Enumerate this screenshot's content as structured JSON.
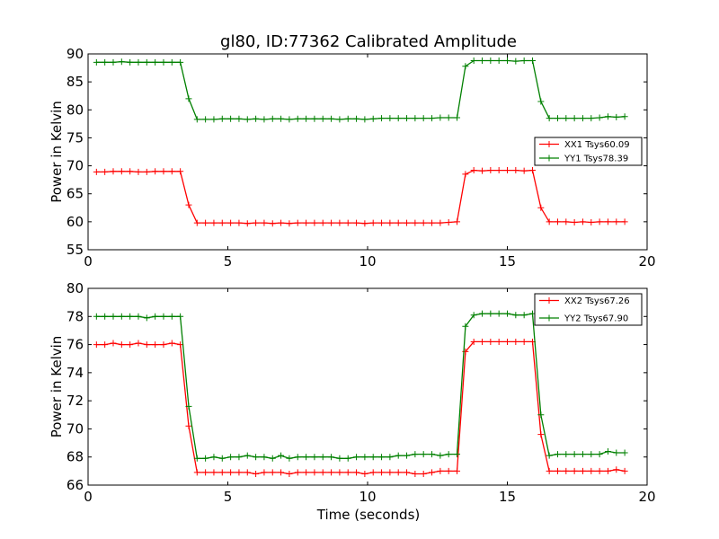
{
  "title": "gl80, ID:77362 Calibrated Amplitude",
  "xlabel": "Time (seconds)",
  "colors": {
    "red": "#ff0000",
    "green": "#008000"
  },
  "chart_data": [
    {
      "type": "line",
      "ylabel": "Power in Kelvin",
      "xlim": [
        0,
        20
      ],
      "ylim": [
        55,
        90
      ],
      "xticks": [
        "0",
        "5",
        "10",
        "15",
        "20"
      ],
      "yticks": [
        "55",
        "60",
        "65",
        "70",
        "75",
        "80",
        "85",
        "90"
      ],
      "grid": false,
      "legend": "right",
      "x": [
        0.3,
        0.6,
        0.9,
        1.2,
        1.5,
        1.8,
        2.1,
        2.4,
        2.7,
        3.0,
        3.3,
        3.6,
        3.9,
        4.2,
        4.5,
        4.8,
        5.1,
        5.4,
        5.7,
        6.0,
        6.3,
        6.6,
        6.9,
        7.2,
        7.5,
        7.8,
        8.1,
        8.4,
        8.7,
        9.0,
        9.3,
        9.6,
        9.9,
        10.2,
        10.5,
        10.8,
        11.1,
        11.4,
        11.7,
        12.0,
        12.3,
        12.6,
        12.9,
        13.2,
        13.5,
        13.8,
        14.1,
        14.4,
        14.7,
        15.0,
        15.3,
        15.6,
        15.9,
        16.2,
        16.5,
        16.8,
        17.1,
        17.4,
        17.7,
        18.0,
        18.3,
        18.6,
        18.9,
        19.2
      ],
      "series": [
        {
          "name": "XX1 Tsys60.09",
          "color": "#ff0000",
          "values": [
            68.9,
            68.9,
            69.0,
            69.0,
            69.0,
            68.9,
            68.9,
            69.0,
            69.0,
            69.0,
            69.0,
            63.0,
            59.8,
            59.8,
            59.8,
            59.8,
            59.8,
            59.8,
            59.7,
            59.8,
            59.8,
            59.7,
            59.8,
            59.7,
            59.8,
            59.8,
            59.8,
            59.8,
            59.8,
            59.8,
            59.8,
            59.8,
            59.7,
            59.8,
            59.8,
            59.8,
            59.8,
            59.8,
            59.8,
            59.8,
            59.8,
            59.8,
            59.9,
            60.0,
            68.5,
            69.2,
            69.1,
            69.2,
            69.2,
            69.2,
            69.2,
            69.1,
            69.2,
            62.5,
            60.0,
            60.0,
            60.0,
            59.9,
            60.0,
            59.9,
            60.0,
            60.0,
            60.0,
            60.0
          ]
        },
        {
          "name": "YY1 Tsys78.39",
          "color": "#008000",
          "values": [
            88.5,
            88.5,
            88.5,
            88.6,
            88.5,
            88.5,
            88.5,
            88.5,
            88.5,
            88.5,
            88.5,
            82.0,
            78.3,
            78.3,
            78.3,
            78.4,
            78.4,
            78.4,
            78.3,
            78.4,
            78.3,
            78.4,
            78.4,
            78.3,
            78.4,
            78.4,
            78.4,
            78.4,
            78.4,
            78.3,
            78.4,
            78.4,
            78.3,
            78.4,
            78.5,
            78.5,
            78.5,
            78.5,
            78.5,
            78.5,
            78.5,
            78.6,
            78.6,
            78.6,
            87.8,
            88.8,
            88.8,
            88.8,
            88.8,
            88.8,
            88.7,
            88.8,
            88.8,
            81.5,
            78.5,
            78.5,
            78.5,
            78.5,
            78.5,
            78.5,
            78.6,
            78.8,
            78.7,
            78.8
          ]
        }
      ]
    },
    {
      "type": "line",
      "ylabel": "Power in Kelvin",
      "xlabel": "Time (seconds)",
      "xlim": [
        0,
        20
      ],
      "ylim": [
        66,
        80
      ],
      "xticks": [
        "0",
        "5",
        "10",
        "15",
        "20"
      ],
      "yticks": [
        "66",
        "68",
        "70",
        "72",
        "74",
        "76",
        "78",
        "80"
      ],
      "grid": false,
      "legend": "top-right",
      "x": [
        0.3,
        0.6,
        0.9,
        1.2,
        1.5,
        1.8,
        2.1,
        2.4,
        2.7,
        3.0,
        3.3,
        3.6,
        3.9,
        4.2,
        4.5,
        4.8,
        5.1,
        5.4,
        5.7,
        6.0,
        6.3,
        6.6,
        6.9,
        7.2,
        7.5,
        7.8,
        8.1,
        8.4,
        8.7,
        9.0,
        9.3,
        9.6,
        9.9,
        10.2,
        10.5,
        10.8,
        11.1,
        11.4,
        11.7,
        12.0,
        12.3,
        12.6,
        12.9,
        13.2,
        13.5,
        13.8,
        14.1,
        14.4,
        14.7,
        15.0,
        15.3,
        15.6,
        15.9,
        16.2,
        16.5,
        16.8,
        17.1,
        17.4,
        17.7,
        18.0,
        18.3,
        18.6,
        18.9,
        19.2
      ],
      "series": [
        {
          "name": "XX2 Tsys67.26",
          "color": "#ff0000",
          "values": [
            76.0,
            76.0,
            76.1,
            76.0,
            76.0,
            76.1,
            76.0,
            76.0,
            76.0,
            76.1,
            76.0,
            70.2,
            66.9,
            66.9,
            66.9,
            66.9,
            66.9,
            66.9,
            66.9,
            66.8,
            66.9,
            66.9,
            66.9,
            66.8,
            66.9,
            66.9,
            66.9,
            66.9,
            66.9,
            66.9,
            66.9,
            66.9,
            66.8,
            66.9,
            66.9,
            66.9,
            66.9,
            66.9,
            66.8,
            66.8,
            66.9,
            67.0,
            67.0,
            67.0,
            75.5,
            76.2,
            76.2,
            76.2,
            76.2,
            76.2,
            76.2,
            76.2,
            76.2,
            69.6,
            67.0,
            67.0,
            67.0,
            67.0,
            67.0,
            67.0,
            67.0,
            67.0,
            67.1,
            67.0
          ]
        },
        {
          "name": "YY2 Tsys67.90",
          "color": "#008000",
          "values": [
            78.0,
            78.0,
            78.0,
            78.0,
            78.0,
            78.0,
            77.9,
            78.0,
            78.0,
            78.0,
            78.0,
            71.6,
            67.9,
            67.9,
            68.0,
            67.9,
            68.0,
            68.0,
            68.1,
            68.0,
            68.0,
            67.9,
            68.1,
            67.9,
            68.0,
            68.0,
            68.0,
            68.0,
            68.0,
            67.9,
            67.9,
            68.0,
            68.0,
            68.0,
            68.0,
            68.0,
            68.1,
            68.1,
            68.2,
            68.2,
            68.2,
            68.1,
            68.2,
            68.2,
            77.3,
            78.1,
            78.2,
            78.2,
            78.2,
            78.2,
            78.1,
            78.1,
            78.2,
            71.0,
            68.1,
            68.2,
            68.2,
            68.2,
            68.2,
            68.2,
            68.2,
            68.4,
            68.3,
            68.3
          ]
        }
      ]
    }
  ]
}
